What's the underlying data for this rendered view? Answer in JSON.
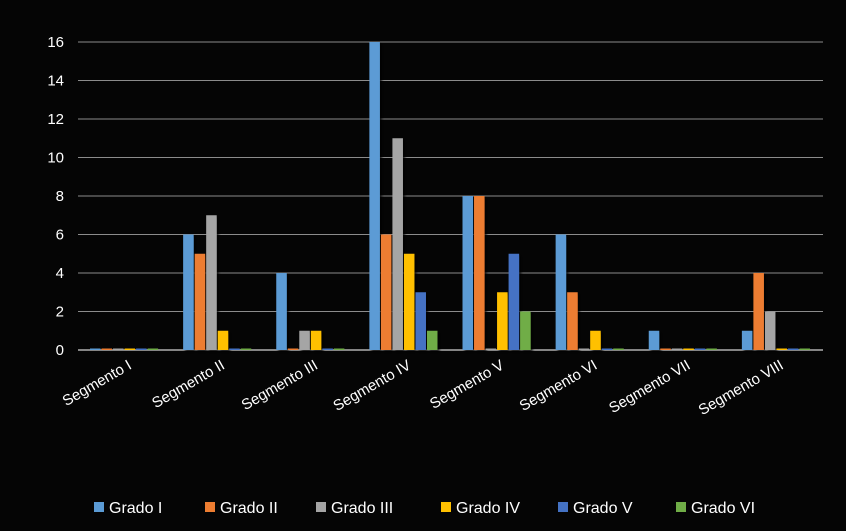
{
  "chart_data": {
    "type": "bar",
    "categories": [
      "Segmento I",
      "Segmento II",
      "Segmento III",
      "Segmento IV",
      "Segmento V",
      "Segmento VI",
      "Segmento VII",
      "Segmento VIII"
    ],
    "series": [
      {
        "name": "Grado I",
        "values": [
          0,
          6,
          4,
          16,
          8,
          6,
          1,
          1
        ]
      },
      {
        "name": "Grado II",
        "values": [
          0,
          5,
          0,
          6,
          8,
          3,
          0,
          4
        ]
      },
      {
        "name": "Grado III",
        "values": [
          0,
          7,
          1,
          11,
          0,
          0,
          0,
          2
        ]
      },
      {
        "name": "Grado IV",
        "values": [
          0,
          1,
          1,
          5,
          3,
          1,
          0,
          0
        ]
      },
      {
        "name": "Grado V",
        "values": [
          0,
          0,
          0,
          3,
          5,
          0,
          0,
          0
        ]
      },
      {
        "name": "Grado VI",
        "values": [
          0,
          0,
          0,
          1,
          2,
          0,
          0,
          0
        ]
      }
    ],
    "colors": [
      "#5b9bd5",
      "#ed7d31",
      "#a5a5a5",
      "#ffc000",
      "#4472c4",
      "#70ad47"
    ],
    "ylim": [
      0,
      16
    ],
    "yticks": [
      0,
      2,
      4,
      6,
      8,
      10,
      12,
      14,
      16
    ],
    "title": "",
    "xlabel": "",
    "ylabel": "",
    "grid": true,
    "legend_position": "bottom",
    "background": "#000000",
    "text_color": "#ffffff"
  }
}
